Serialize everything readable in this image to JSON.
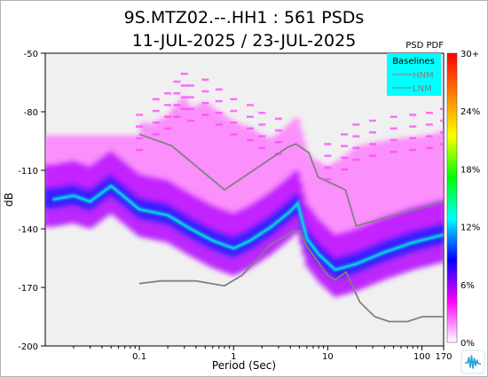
{
  "chart_data": {
    "type": "heatmap",
    "title_line1": "9S.MTZ02.--.HH1 : 561 PSDs",
    "title_line2": "11-JUL-2025 / 23-JUL-2025",
    "xlabel": "Period (Sec)",
    "ylabel": "dB",
    "x_scale": "log",
    "xlim": [
      0.01,
      170
    ],
    "ylim": [
      -200,
      -50
    ],
    "x_ticks": [
      {
        "value": 0.1,
        "label": "0.1"
      },
      {
        "value": 1,
        "label": "1"
      },
      {
        "value": 10,
        "label": "10"
      },
      {
        "value": 100,
        "label": "100"
      },
      {
        "value": 170,
        "label": "170"
      }
    ],
    "y_ticks": [
      {
        "value": -50,
        "label": "-50"
      },
      {
        "value": -80,
        "label": "-80"
      },
      {
        "value": -110,
        "label": "-110"
      },
      {
        "value": -140,
        "label": "-140"
      },
      {
        "value": -170,
        "label": "-170"
      },
      {
        "value": -200,
        "label": "-200"
      }
    ],
    "colorbar": {
      "title": "PSD PDF",
      "labels": [
        "30+",
        "24%",
        "18%",
        "12%",
        "6%",
        "0%"
      ],
      "colors": [
        "#ff0000",
        "#ff8000",
        "#ffff00",
        "#00ff00",
        "#00ffff",
        "#0000ff",
        "#ff00ff",
        "#ffffff"
      ]
    },
    "legend": {
      "title": "Baselines",
      "placement": "top-right",
      "background": "#00ffff",
      "entries": [
        {
          "name": "HNM",
          "color": "#808080"
        },
        {
          "name": "LNM",
          "color": "#808080"
        }
      ]
    },
    "series": [
      {
        "name": "HNM",
        "color": "#808080",
        "x": [
          0.1,
          0.22,
          0.8,
          3.8,
          4.6,
          6.3,
          7.9,
          15.4,
          20,
          170
        ],
        "y": [
          -91.5,
          -97.4,
          -120,
          -98,
          -96.5,
          -101,
          -113.5,
          -120,
          -138.5,
          -126
        ]
      },
      {
        "name": "LNM",
        "color": "#808080",
        "x": [
          0.1,
          0.17,
          0.4,
          0.8,
          1.24,
          2.4,
          4.3,
          5,
          6,
          10,
          12,
          15.6,
          21.9,
          31.6,
          45,
          70,
          101,
          154,
          170
        ],
        "y": [
          -168,
          -166.7,
          -166.7,
          -169.2,
          -163.7,
          -148.6,
          -141.1,
          -141.1,
          -149,
          -163.8,
          -166.2,
          -162.1,
          -177.5,
          -185,
          -187.5,
          -187.5,
          -185,
          -185,
          -185
        ]
      }
    ],
    "pdf_ridge": {
      "x": [
        0.012,
        0.02,
        0.03,
        0.05,
        0.1,
        0.2,
        0.35,
        0.6,
        1,
        1.5,
        2.5,
        4,
        4.8,
        6,
        8,
        12,
        20,
        40,
        80,
        170
      ],
      "y": [
        -125,
        -123,
        -126,
        -118,
        -130,
        -133,
        -140,
        -146,
        -150,
        -146,
        -139,
        -131,
        -127,
        -145,
        -153,
        -161,
        -158,
        -152,
        -147,
        -143
      ]
    },
    "pdf_upper_scatter": {
      "x": [
        0.1,
        0.15,
        0.2,
        0.25,
        0.3,
        0.35,
        0.5,
        0.7,
        1.0,
        1.5,
        2.0,
        3.0,
        10,
        15,
        20,
        30,
        50,
        80,
        120,
        170
      ],
      "y": [
        -93,
        -85,
        -82,
        -76,
        -72,
        -78,
        -75,
        -80,
        -85,
        -88,
        -92,
        -95,
        -108,
        -103,
        -98,
        -96,
        -94,
        -93,
        -92,
        -90
      ]
    }
  }
}
